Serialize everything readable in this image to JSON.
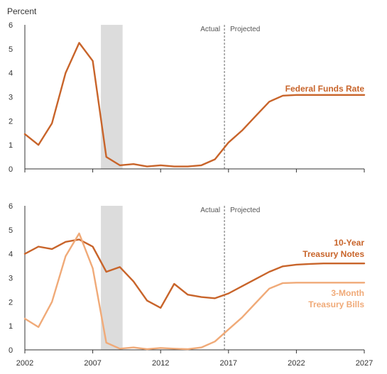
{
  "colors": {
    "dark_orange": "#c8642a",
    "light_orange": "#f0aa78",
    "axis": "#333333",
    "recession": "#dcdcdc",
    "divider": "#666666",
    "tick_text": "#333333"
  },
  "chart_data": [
    {
      "type": "line",
      "ylabel": "Percent",
      "ylim": [
        0,
        6
      ],
      "xlim": [
        2002,
        2027
      ],
      "y_ticks": [
        "0",
        "1",
        "2",
        "3",
        "4",
        "5",
        "6"
      ],
      "x_ticks": [],
      "recession": [
        2007.6,
        2009.2
      ],
      "divider_x": 2016.7,
      "actual_label": "Actual",
      "projected_label": "Projected",
      "series": [
        {
          "name": "Federal Funds Rate",
          "color": "#c8642a",
          "x": [
            2002,
            2003,
            2004,
            2005,
            2006,
            2007,
            2008,
            2009,
            2010,
            2011,
            2012,
            2013,
            2014,
            2015,
            2016,
            2017,
            2018,
            2019,
            2020,
            2021,
            2022,
            2023,
            2024,
            2025,
            2026,
            2027
          ],
          "y": [
            1.45,
            1.0,
            1.9,
            4.0,
            5.25,
            4.5,
            0.5,
            0.15,
            0.2,
            0.1,
            0.15,
            0.1,
            0.1,
            0.15,
            0.4,
            1.1,
            1.6,
            2.2,
            2.8,
            3.05,
            3.08,
            3.08,
            3.08,
            3.08,
            3.08,
            3.08
          ]
        }
      ]
    },
    {
      "type": "line",
      "ylim": [
        0,
        6
      ],
      "xlim": [
        2002,
        2027
      ],
      "y_ticks": [
        "0",
        "1",
        "2",
        "3",
        "4",
        "5",
        "6"
      ],
      "x_ticks": [
        "2002",
        "2007",
        "2012",
        "2017",
        "2022",
        "2027"
      ],
      "recession": [
        2007.6,
        2009.2
      ],
      "divider_x": 2016.7,
      "actual_label": "Actual",
      "projected_label": "Projected",
      "series": [
        {
          "name": "10-Year Treasury Notes",
          "label_lines": [
            "10-Year",
            "Treasury Notes"
          ],
          "color": "#c8642a",
          "x": [
            2002,
            2003,
            2004,
            2005,
            2006,
            2007,
            2008,
            2009,
            2010,
            2011,
            2012,
            2013,
            2014,
            2015,
            2016,
            2017,
            2018,
            2019,
            2020,
            2021,
            2022,
            2023,
            2024,
            2025,
            2026,
            2027
          ],
          "y": [
            4.0,
            4.3,
            4.2,
            4.5,
            4.6,
            4.3,
            3.25,
            3.45,
            2.85,
            2.05,
            1.75,
            2.75,
            2.3,
            2.2,
            2.15,
            2.35,
            2.65,
            2.95,
            3.25,
            3.48,
            3.55,
            3.58,
            3.6,
            3.6,
            3.6,
            3.6
          ]
        },
        {
          "name": "3-Month Treasury Bills",
          "label_lines": [
            "3-Month",
            "Treasury Bills"
          ],
          "color": "#f0aa78",
          "x": [
            2002,
            2003,
            2004,
            2005,
            2006,
            2007,
            2008,
            2009,
            2010,
            2011,
            2012,
            2013,
            2014,
            2015,
            2016,
            2017,
            2018,
            2019,
            2020,
            2021,
            2022,
            2023,
            2024,
            2025,
            2026,
            2027
          ],
          "y": [
            1.3,
            0.95,
            2.0,
            3.9,
            4.85,
            3.4,
            0.3,
            0.05,
            0.1,
            0.03,
            0.08,
            0.05,
            0.03,
            0.1,
            0.35,
            0.85,
            1.35,
            1.95,
            2.55,
            2.78,
            2.8,
            2.8,
            2.8,
            2.8,
            2.8,
            2.8
          ]
        }
      ]
    }
  ]
}
